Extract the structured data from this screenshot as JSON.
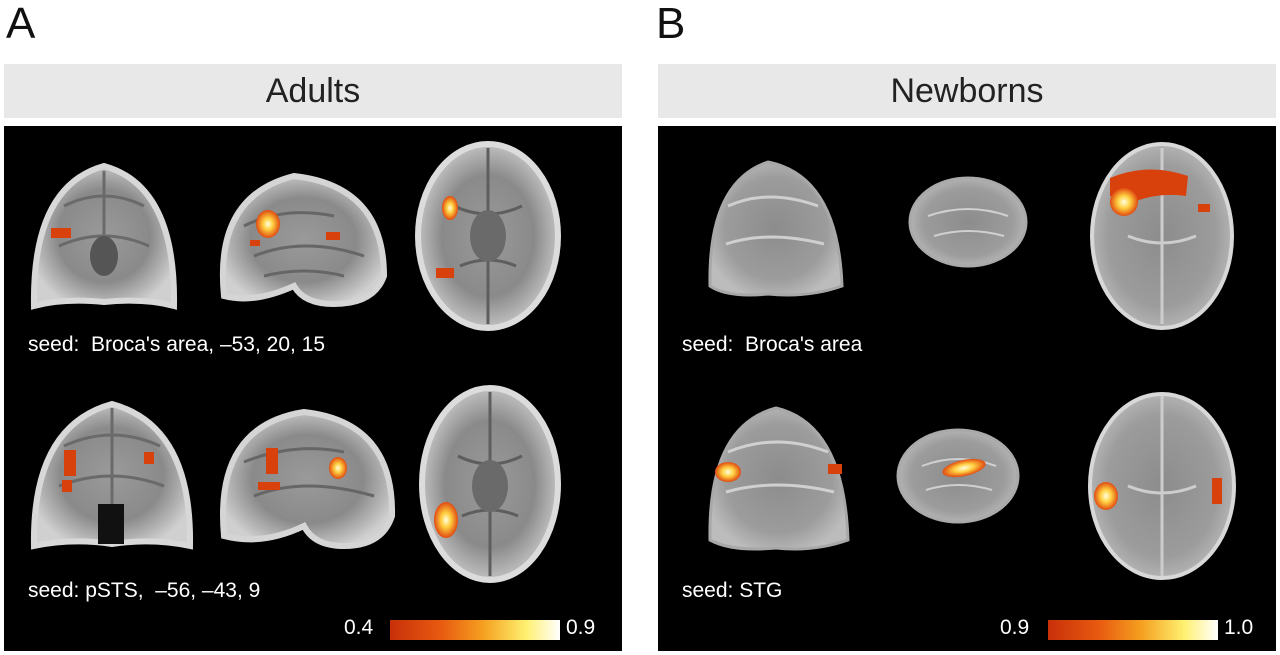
{
  "panel_a": {
    "letter": "A",
    "title": "Adults",
    "seed_1": "seed:  Broca's area, –53, 20, 15",
    "seed_2": "seed: pSTS,  –56, –43, 9",
    "colorbar_min": "0.4",
    "colorbar_max": "0.9"
  },
  "panel_b": {
    "letter": "B",
    "title": "Newborns",
    "seed_1": "seed:  Broca's area",
    "seed_2": "seed: STG",
    "colorbar_min": "0.9",
    "colorbar_max": "1.0"
  },
  "colors": {
    "activation_low": "#d8400c",
    "activation_high": "#ffffd0",
    "background": "#000000",
    "title_bar": "#e8e8e8"
  }
}
